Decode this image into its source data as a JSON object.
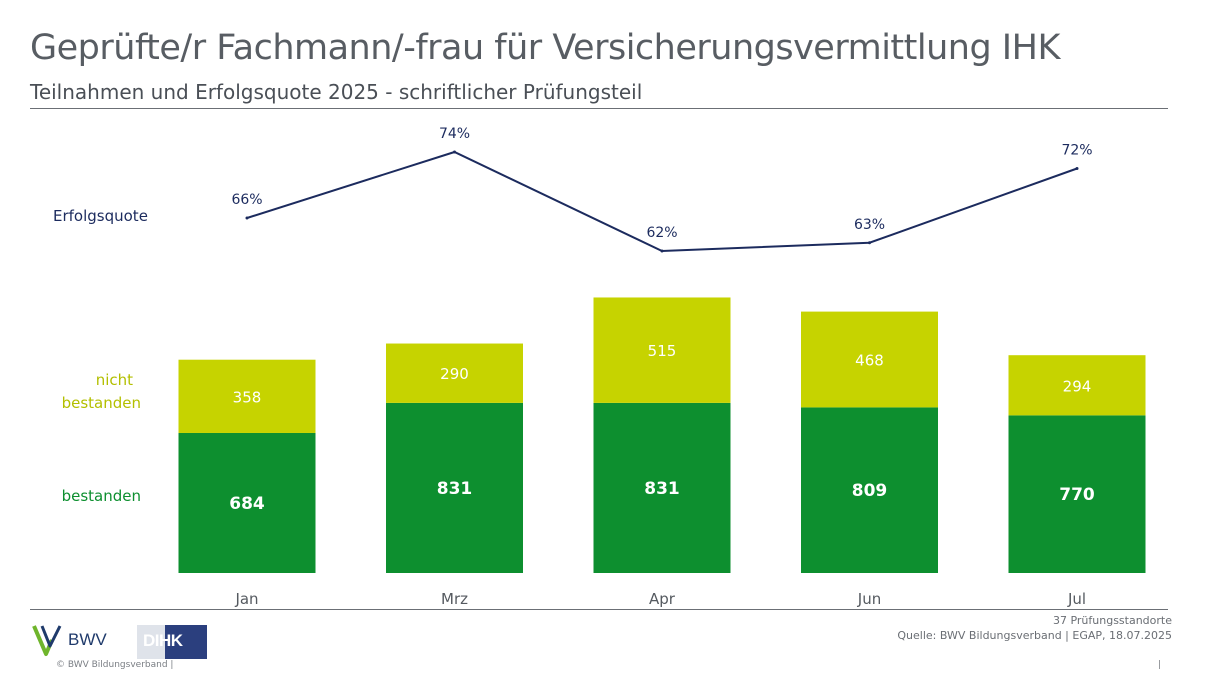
{
  "header": {
    "title": "Geprüfte/r Fachmann/-frau für Versicherungsvermittlung IHK",
    "subtitle": "Teilnahmen und Erfolgsquote 2025 - schriftlicher Prüfungsteil"
  },
  "chart_data": {
    "type": "bar",
    "stacked": true,
    "categories": [
      "Jan",
      "Mrz",
      "Apr",
      "Jun",
      "Jul"
    ],
    "series": [
      {
        "name": "bestanden",
        "values": [
          684,
          831,
          831,
          809,
          770
        ],
        "color": "#0d8f2f"
      },
      {
        "name": "nicht bestanden",
        "values": [
          358,
          290,
          515,
          468,
          294
        ],
        "color": "#c6d300"
      }
    ],
    "line_series": {
      "name": "Erfolgsquote",
      "values": [
        66,
        74,
        62,
        63,
        72
      ],
      "labels": [
        "66%",
        "74%",
        "62%",
        "63%",
        "72%"
      ],
      "color": "#1c2b5e"
    },
    "series_labels": {
      "line": "Erfolgsquote",
      "failed_line1": "nicht",
      "failed_line2": "bestanden",
      "passed": "bestanden"
    },
    "grid": false,
    "legend": "left"
  },
  "footer": {
    "sites": "37 Prüfungsstandorte",
    "source": "Quelle: BWV Bildungsverband | EGAP, 18.07.2025",
    "copyright": "©  BWV Bildungsverband  |",
    "page_sep": "|",
    "bwv_logo_text": "BWV",
    "dihk_logo_text": "DIHK"
  },
  "colors": {
    "passed": "#0d8f2f",
    "failed": "#c6d300",
    "line": "#1c2b5e",
    "failed_label": "#b3bf00"
  }
}
